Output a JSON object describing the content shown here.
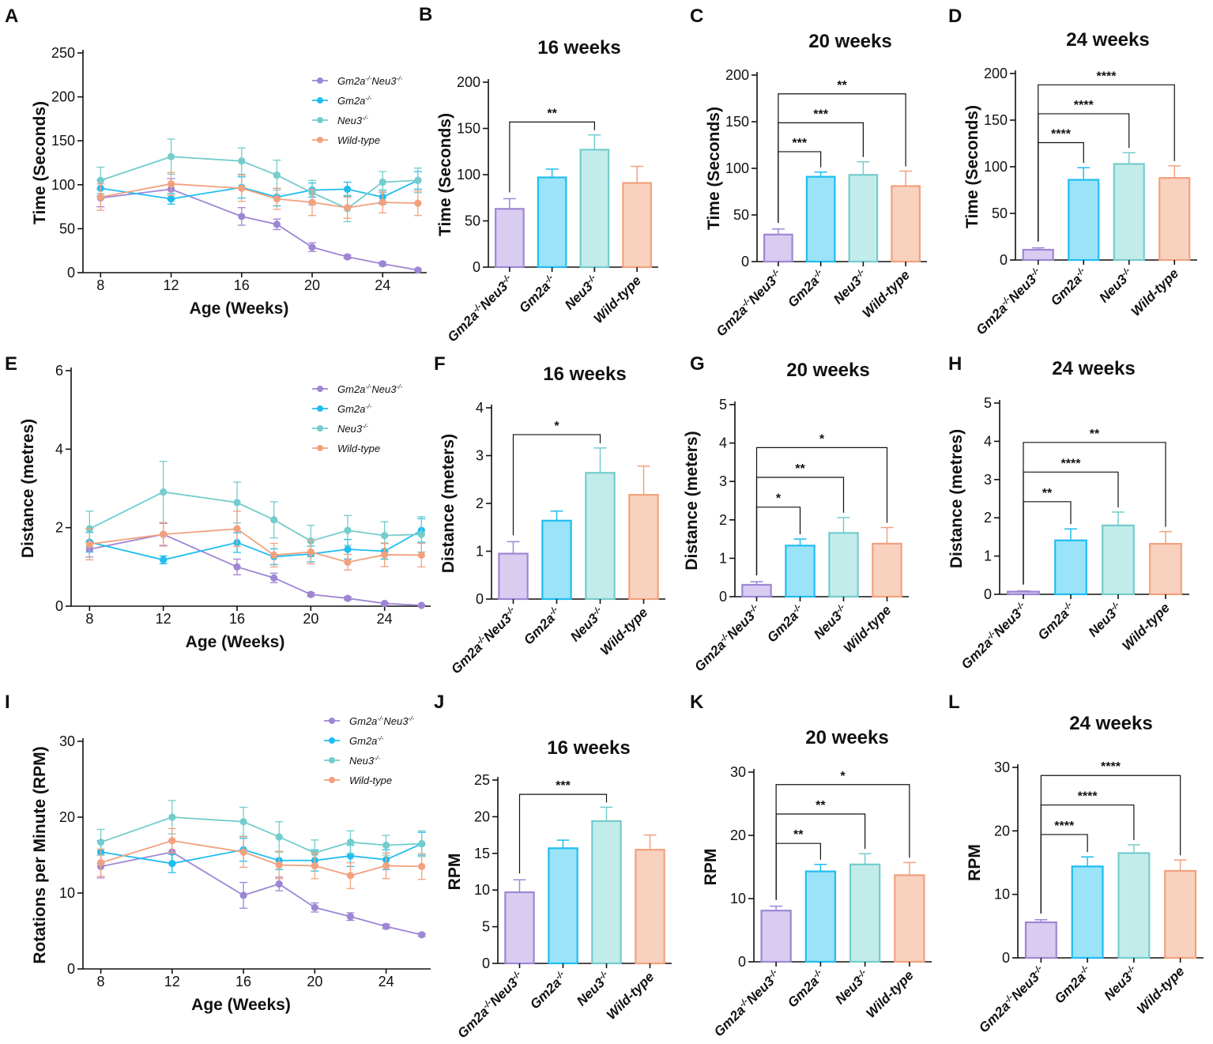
{
  "figure": {
    "background": "#ffffff"
  },
  "colors": {
    "Gm2a-/-Neu3-/-": "#9e86d4",
    "Gm2a-/-": "#1fbdf0",
    "Neu3-/-": "#74cccc",
    "Wild-type": "#f2a17f"
  },
  "bar_fills": {
    "Gm2a-/-Neu3-/-": "#d8cdf1",
    "Gm2a-/-": "#9be3f9",
    "Neu3-/-": "#c2ecea",
    "Wild-type": "#f9d2bf"
  },
  "chart_data": [
    {
      "id": "A",
      "letter": "A",
      "type": "line",
      "title": "",
      "xlabel": "Age (Weeks)",
      "ylabel": "Time (Seconds)",
      "xlim": [
        7,
        26.5
      ],
      "ylim": [
        0,
        250
      ],
      "xticks": [
        8,
        12,
        16,
        20,
        24
      ],
      "yticks": [
        0,
        50,
        100,
        150,
        200,
        250
      ],
      "legend": [
        "Gm2a-/-Neu3-/-",
        "Gm2a-/-",
        "Neu3-/-",
        "Wild-type"
      ],
      "legend_position": "top-right",
      "series": [
        {
          "name": "Gm2a-/-Neu3-/-",
          "x": [
            8,
            12,
            16,
            18,
            20,
            22,
            24,
            26
          ],
          "y": [
            85,
            95,
            64,
            55,
            29,
            18,
            10,
            3
          ],
          "err": [
            10,
            12,
            10,
            6,
            5,
            2,
            2,
            1
          ]
        },
        {
          "name": "Gm2a-/-",
          "x": [
            8,
            12,
            16,
            18,
            20,
            22,
            24,
            26
          ],
          "y": [
            96,
            84,
            97,
            86,
            94,
            95,
            86,
            105
          ],
          "err": [
            9,
            6,
            12,
            10,
            8,
            8,
            8,
            10
          ]
        },
        {
          "name": "Neu3-/-",
          "x": [
            8,
            12,
            16,
            18,
            20,
            22,
            24,
            26
          ],
          "y": [
            105,
            132,
            127,
            111,
            91,
            73,
            103,
            105
          ],
          "err": [
            15,
            20,
            15,
            17,
            14,
            15,
            12,
            14
          ]
        },
        {
          "name": "Wild-type",
          "x": [
            8,
            12,
            16,
            18,
            20,
            22,
            24,
            26
          ],
          "y": [
            86,
            101,
            96,
            84,
            80,
            74,
            80,
            79
          ],
          "err": [
            15,
            13,
            15,
            12,
            15,
            12,
            12,
            14
          ]
        }
      ]
    },
    {
      "id": "B",
      "letter": "B",
      "type": "bar",
      "title": "16 weeks",
      "ylabel": "Time (Seconds)",
      "categories": [
        "Gm2a-/-Neu3-/-",
        "Gm2a-/-",
        "Neu3-/-",
        "Wild-type"
      ],
      "values": [
        63,
        97,
        127,
        91
      ],
      "err": [
        11,
        9,
        16,
        18
      ],
      "ylim": [
        0,
        200
      ],
      "yticks": [
        0,
        50,
        100,
        150,
        200
      ],
      "significance": [
        {
          "from": 0,
          "to": 2,
          "label": "**"
        }
      ]
    },
    {
      "id": "C",
      "letter": "C",
      "type": "bar",
      "title": "20 weeks",
      "ylabel": "Time (Seconds)",
      "categories": [
        "Gm2a-/-Neu3-/-",
        "Gm2a-/-",
        "Neu3-/-",
        "Wild-type"
      ],
      "values": [
        29,
        91,
        93,
        81
      ],
      "err": [
        6,
        5,
        14,
        16
      ],
      "ylim": [
        0,
        200
      ],
      "yticks": [
        0,
        50,
        100,
        150,
        200
      ],
      "significance": [
        {
          "from": 0,
          "to": 1,
          "label": "***"
        },
        {
          "from": 0,
          "to": 2,
          "label": "***"
        },
        {
          "from": 0,
          "to": 3,
          "label": "**"
        }
      ]
    },
    {
      "id": "D",
      "letter": "D",
      "type": "bar",
      "title": "24 weeks",
      "ylabel": "Time (Seconds)",
      "categories": [
        "Gm2a-/-Neu3-/-",
        "Gm2a-/-",
        "Neu3-/-",
        "Wild-type"
      ],
      "values": [
        11,
        86,
        103,
        88
      ],
      "err": [
        2,
        13,
        12,
        13
      ],
      "ylim": [
        0,
        200
      ],
      "yticks": [
        0,
        50,
        100,
        150,
        200
      ],
      "significance": [
        {
          "from": 0,
          "to": 1,
          "label": "****"
        },
        {
          "from": 0,
          "to": 2,
          "label": "****"
        },
        {
          "from": 0,
          "to": 3,
          "label": "****"
        }
      ]
    },
    {
      "id": "E",
      "letter": "E",
      "type": "line",
      "title": "",
      "xlabel": "Age (Weeks)",
      "ylabel": "Distance (metres)",
      "xlim": [
        7,
        26.5
      ],
      "ylim": [
        0,
        6
      ],
      "xticks": [
        8,
        12,
        16,
        20,
        24
      ],
      "yticks": [
        0,
        2,
        4,
        6
      ],
      "legend": [
        "Gm2a-/-Neu3-/-",
        "Gm2a-/-",
        "Neu3-/-",
        "Wild-type"
      ],
      "legend_position": "top-right",
      "series": [
        {
          "name": "Gm2a-/-Neu3-/-",
          "x": [
            8,
            12,
            16,
            18,
            20,
            22,
            24,
            26
          ],
          "y": [
            1.45,
            1.83,
            1.0,
            0.72,
            0.3,
            0.2,
            0.07,
            0.02
          ],
          "err": [
            0.2,
            0.28,
            0.2,
            0.12,
            0.05,
            0.04,
            0.02,
            0.01
          ]
        },
        {
          "name": "Gm2a-/-",
          "x": [
            8,
            12,
            16,
            18,
            20,
            22,
            24,
            26
          ],
          "y": [
            1.63,
            1.18,
            1.62,
            1.26,
            1.33,
            1.45,
            1.4,
            1.93
          ],
          "err": [
            0.25,
            0.1,
            0.25,
            0.2,
            0.2,
            0.25,
            0.2,
            0.3
          ]
        },
        {
          "name": "Neu3-/-",
          "x": [
            8,
            12,
            16,
            18,
            20,
            22,
            24,
            26
          ],
          "y": [
            1.97,
            2.91,
            2.64,
            2.2,
            1.66,
            1.93,
            1.8,
            1.83
          ],
          "err": [
            0.45,
            0.78,
            0.52,
            0.46,
            0.4,
            0.38,
            0.35,
            0.45
          ]
        },
        {
          "name": "Wild-type",
          "x": [
            8,
            12,
            16,
            18,
            20,
            22,
            24,
            26
          ],
          "y": [
            1.58,
            1.83,
            1.97,
            1.3,
            1.38,
            1.12,
            1.31,
            1.3
          ],
          "err": [
            0.4,
            0.3,
            0.45,
            0.3,
            0.3,
            0.2,
            0.3,
            0.3
          ]
        }
      ]
    },
    {
      "id": "F",
      "letter": "F",
      "type": "bar",
      "title": "16 weeks",
      "ylabel": "Distance (meters)",
      "categories": [
        "Gm2a-/-Neu3-/-",
        "Gm2a-/-",
        "Neu3-/-",
        "Wild-type"
      ],
      "values": [
        0.95,
        1.64,
        2.64,
        2.18
      ],
      "err": [
        0.25,
        0.2,
        0.52,
        0.6
      ],
      "ylim": [
        0,
        4
      ],
      "yticks": [
        0,
        1,
        2,
        3,
        4
      ],
      "significance": [
        {
          "from": 0,
          "to": 2,
          "label": "*"
        }
      ]
    },
    {
      "id": "G",
      "letter": "G",
      "type": "bar",
      "title": "20 weeks",
      "ylabel": "Distance (meters)",
      "categories": [
        "Gm2a-/-Neu3-/-",
        "Gm2a-/-",
        "Neu3-/-",
        "Wild-type"
      ],
      "values": [
        0.31,
        1.33,
        1.66,
        1.38
      ],
      "err": [
        0.08,
        0.17,
        0.4,
        0.42
      ],
      "ylim": [
        0,
        5
      ],
      "yticks": [
        0,
        1,
        2,
        3,
        4,
        5
      ],
      "significance": [
        {
          "from": 0,
          "to": 1,
          "label": "*"
        },
        {
          "from": 0,
          "to": 2,
          "label": "**"
        },
        {
          "from": 0,
          "to": 3,
          "label": "*"
        }
      ]
    },
    {
      "id": "H",
      "letter": "H",
      "type": "bar",
      "title": "24 weeks",
      "ylabel": "Distance (metres)",
      "categories": [
        "Gm2a-/-Neu3-/-",
        "Gm2a-/-",
        "Neu3-/-",
        "Wild-type"
      ],
      "values": [
        0.07,
        1.41,
        1.8,
        1.32
      ],
      "err": [
        0.02,
        0.3,
        0.35,
        0.32
      ],
      "ylim": [
        0,
        5
      ],
      "yticks": [
        0,
        1,
        2,
        3,
        4,
        5
      ],
      "significance": [
        {
          "from": 0,
          "to": 1,
          "label": "**"
        },
        {
          "from": 0,
          "to": 2,
          "label": "****"
        },
        {
          "from": 0,
          "to": 3,
          "label": "**"
        }
      ]
    },
    {
      "id": "I",
      "letter": "I",
      "type": "line",
      "title": "",
      "xlabel": "Age (Weeks)",
      "ylabel": "Rotations per Minute (RPM)",
      "xlim": [
        7,
        26.5
      ],
      "ylim": [
        0,
        30
      ],
      "xticks": [
        8,
        12,
        16,
        20,
        24
      ],
      "yticks": [
        0,
        10,
        20,
        30
      ],
      "legend": [
        "Gm2a-/-Neu3-/-",
        "Gm2a-/-",
        "Neu3-/-",
        "Wild-type"
      ],
      "legend_position": "top-right",
      "series": [
        {
          "name": "Gm2a-/-Neu3-/-",
          "x": [
            8,
            12,
            16,
            18,
            20,
            22,
            24,
            26
          ],
          "y": [
            13.5,
            15.4,
            9.7,
            11.2,
            8.1,
            6.9,
            5.6,
            4.5
          ],
          "err": [
            1.5,
            1.5,
            1.7,
            0.9,
            0.6,
            0.5,
            0.3,
            0.2
          ]
        },
        {
          "name": "Gm2a-/-",
          "x": [
            8,
            12,
            16,
            18,
            20,
            22,
            24,
            26
          ],
          "y": [
            15.4,
            13.9,
            15.7,
            14.3,
            14.3,
            14.9,
            14.4,
            16.5
          ],
          "err": [
            1.5,
            1.2,
            1.5,
            1.2,
            1.4,
            1.4,
            1.3,
            1.5
          ]
        },
        {
          "name": "Neu3-/-",
          "x": [
            8,
            12,
            16,
            18,
            20,
            22,
            24,
            26
          ],
          "y": [
            16.7,
            20.0,
            19.4,
            17.4,
            15.3,
            16.7,
            16.3,
            16.5
          ],
          "err": [
            1.7,
            2.2,
            1.9,
            2.0,
            1.7,
            1.5,
            1.3,
            1.7
          ]
        },
        {
          "name": "Wild-type",
          "x": [
            8,
            12,
            16,
            18,
            20,
            22,
            24,
            26
          ],
          "y": [
            14.0,
            16.9,
            15.4,
            13.7,
            13.6,
            12.3,
            13.6,
            13.5
          ],
          "err": [
            1.8,
            1.6,
            2.0,
            1.8,
            1.7,
            1.7,
            1.7,
            1.7
          ]
        }
      ]
    },
    {
      "id": "J",
      "letter": "J",
      "type": "bar",
      "title": "16 weeks",
      "ylabel": "RPM",
      "categories": [
        "Gm2a-/-Neu3-/-",
        "Gm2a-/-",
        "Neu3-/-",
        "Wild-type"
      ],
      "values": [
        9.7,
        15.7,
        19.4,
        15.5
      ],
      "err": [
        1.7,
        1.1,
        1.9,
        2.0
      ],
      "ylim": [
        0,
        25
      ],
      "yticks": [
        0,
        5,
        10,
        15,
        20,
        25
      ],
      "significance": [
        {
          "from": 0,
          "to": 2,
          "label": "***"
        }
      ]
    },
    {
      "id": "K",
      "letter": "K",
      "type": "bar",
      "title": "20 weeks",
      "ylabel": "RPM",
      "categories": [
        "Gm2a-/-Neu3-/-",
        "Gm2a-/-",
        "Neu3-/-",
        "Wild-type"
      ],
      "values": [
        8.1,
        14.3,
        15.4,
        13.7
      ],
      "err": [
        0.7,
        1.1,
        1.7,
        2.0
      ],
      "ylim": [
        0,
        30
      ],
      "yticks": [
        0,
        10,
        20,
        30
      ],
      "significance": [
        {
          "from": 0,
          "to": 1,
          "label": "**"
        },
        {
          "from": 0,
          "to": 2,
          "label": "**"
        },
        {
          "from": 0,
          "to": 3,
          "label": "*"
        }
      ]
    },
    {
      "id": "L",
      "letter": "L",
      "type": "bar",
      "title": "24 weeks",
      "ylabel": "RPM",
      "categories": [
        "Gm2a-/-Neu3-/-",
        "Gm2a-/-",
        "Neu3-/-",
        "Wild-type"
      ],
      "values": [
        5.6,
        14.4,
        16.5,
        13.7
      ],
      "err": [
        0.4,
        1.5,
        1.3,
        1.7
      ],
      "ylim": [
        0,
        30
      ],
      "yticks": [
        0,
        10,
        20,
        30
      ],
      "significance": [
        {
          "from": 0,
          "to": 1,
          "label": "****"
        },
        {
          "from": 0,
          "to": 2,
          "label": "****"
        },
        {
          "from": 0,
          "to": 3,
          "label": "****"
        }
      ]
    }
  ]
}
